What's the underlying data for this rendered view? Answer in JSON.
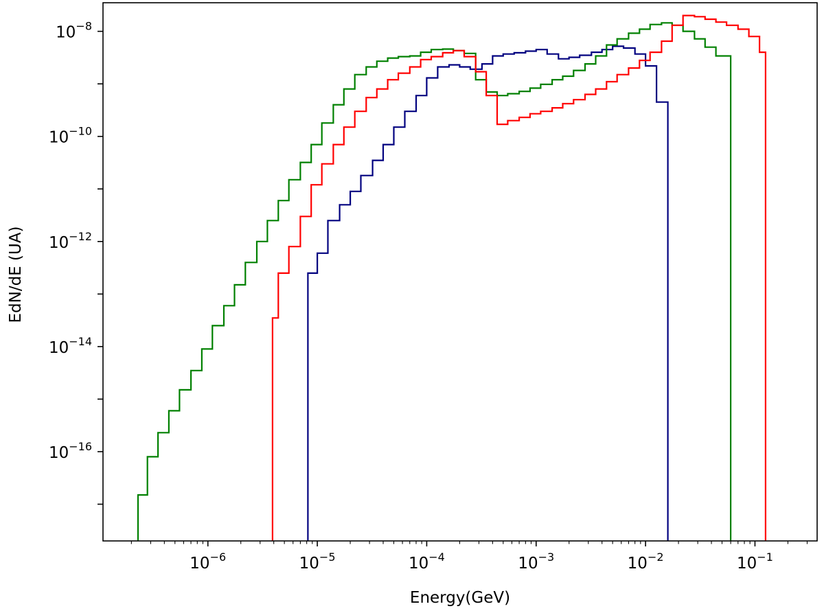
{
  "chart_data": {
    "type": "line",
    "step": true,
    "xlabel": "Energy(GeV)",
    "ylabel": "EdN/dE (UA)",
    "xscale": "log",
    "yscale": "log",
    "xlim": [
      1.1e-07,
      0.37
    ],
    "ylim": [
      2e-18,
      3.5e-08
    ],
    "grid": false,
    "legend": "none",
    "x_ticks": [
      {
        "exp": "−6",
        "value": 1e-06
      },
      {
        "exp": "−5",
        "value": 1e-05
      },
      {
        "exp": "−4",
        "value": 0.0001
      },
      {
        "exp": "−3",
        "value": 0.001
      },
      {
        "exp": "−2",
        "value": 0.01
      },
      {
        "exp": "−1",
        "value": 0.1
      }
    ],
    "y_ticks": [
      {
        "exp": "−8",
        "value": 1e-08
      },
      {
        "exp": "−10",
        "value": 1e-10
      },
      {
        "exp": "−12",
        "value": 1e-12
      },
      {
        "exp": "−14",
        "value": 1e-14
      },
      {
        "exp": "−16",
        "value": 1e-16
      }
    ],
    "series": [
      {
        "color": "#00007f",
        "x": [
          8.2e-06,
          1e-05,
          1.25e-05,
          1.6e-05,
          2e-05,
          2.5e-05,
          3.2e-05,
          4e-05,
          5e-05,
          6.3e-05,
          8e-05,
          0.0001,
          0.000126,
          0.00016,
          0.0002,
          0.00025,
          0.00032,
          0.0004,
          0.0005,
          0.00063,
          0.0008,
          0.001,
          0.00126,
          0.0016,
          0.002,
          0.0025,
          0.0032,
          0.004,
          0.005,
          0.0063,
          0.008,
          0.01,
          0.0126,
          0.016
        ],
        "y": [
          2.5e-13,
          6e-13,
          2.5e-12,
          5e-12,
          9e-12,
          1.8e-11,
          3.5e-11,
          7e-11,
          1.5e-10,
          3e-10,
          6e-10,
          1.3e-09,
          2.1e-09,
          2.3e-09,
          2.1e-09,
          1.9e-09,
          2.4e-09,
          3.4e-09,
          3.7e-09,
          3.9e-09,
          4.2e-09,
          4.5e-09,
          3.7e-09,
          3e-09,
          3.2e-09,
          3.5e-09,
          4e-09,
          4.5e-09,
          5.2e-09,
          4.8e-09,
          3.7e-09,
          2.2e-09,
          4.5e-10,
          1e-18
        ]
      },
      {
        "color": "#008000",
        "x": [
          2.3e-07,
          2.8e-07,
          3.5e-07,
          4.4e-07,
          5.5e-07,
          7e-07,
          8.8e-07,
          1.1e-06,
          1.4e-06,
          1.75e-06,
          2.2e-06,
          2.8e-06,
          3.5e-06,
          4.4e-06,
          5.5e-06,
          7e-06,
          8.8e-06,
          1.1e-05,
          1.4e-05,
          1.75e-05,
          2.2e-05,
          2.8e-05,
          3.5e-05,
          4.4e-05,
          5.5e-05,
          7e-05,
          8.8e-05,
          0.00011,
          0.00014,
          0.000175,
          0.00022,
          0.00028,
          0.00035,
          0.00044,
          0.00055,
          0.0007,
          0.00088,
          0.0011,
          0.0014,
          0.00175,
          0.0022,
          0.0028,
          0.0035,
          0.0044,
          0.0055,
          0.007,
          0.0088,
          0.011,
          0.014,
          0.0175,
          0.022,
          0.028,
          0.035,
          0.044,
          0.06
        ],
        "y": [
          1.5e-17,
          8e-17,
          2.3e-16,
          6e-16,
          1.5e-15,
          3.5e-15,
          9e-15,
          2.5e-14,
          6e-14,
          1.5e-13,
          4e-13,
          1e-12,
          2.5e-12,
          6e-12,
          1.5e-11,
          3.2e-11,
          7e-11,
          1.8e-10,
          4e-10,
          8e-10,
          1.5e-09,
          2.1e-09,
          2.7e-09,
          3.1e-09,
          3.3e-09,
          3.4e-09,
          4e-09,
          4.5e-09,
          4.6e-09,
          4.3e-09,
          3.8e-09,
          1.2e-09,
          7e-10,
          6e-10,
          6.5e-10,
          7.2e-10,
          8.3e-10,
          9.8e-10,
          1.2e-09,
          1.4e-09,
          1.8e-09,
          2.4e-09,
          3.4e-09,
          5.5e-09,
          7.2e-09,
          9.2e-09,
          1.1e-08,
          1.35e-08,
          1.45e-08,
          1.3e-08,
          1e-08,
          7.2e-09,
          5e-09,
          3.4e-09,
          1e-18
        ]
      },
      {
        "color": "#ff0000",
        "x": [
          3.9e-06,
          4.4e-06,
          5.5e-06,
          7e-06,
          8.8e-06,
          1.1e-05,
          1.4e-05,
          1.75e-05,
          2.2e-05,
          2.8e-05,
          3.5e-05,
          4.4e-05,
          5.5e-05,
          7e-05,
          8.8e-05,
          0.00011,
          0.00014,
          0.000175,
          0.00022,
          0.00028,
          0.00035,
          0.00044,
          0.00055,
          0.0007,
          0.00088,
          0.0011,
          0.0014,
          0.00175,
          0.0022,
          0.0028,
          0.0035,
          0.0044,
          0.0055,
          0.007,
          0.0088,
          0.011,
          0.014,
          0.0175,
          0.022,
          0.028,
          0.035,
          0.044,
          0.055,
          0.07,
          0.088,
          0.11,
          0.125
        ],
        "y": [
          3.5e-14,
          2.5e-13,
          8e-13,
          3e-12,
          1.2e-11,
          3e-11,
          7e-11,
          1.5e-10,
          3e-10,
          5.5e-10,
          8e-10,
          1.2e-09,
          1.6e-09,
          2.1e-09,
          2.9e-09,
          3.3e-09,
          3.9e-09,
          4.3e-09,
          3.3e-09,
          1.7e-09,
          6e-10,
          1.7e-10,
          2e-10,
          2.3e-10,
          2.7e-10,
          3e-10,
          3.5e-10,
          4.2e-10,
          5e-10,
          6.3e-10,
          8e-10,
          1.1e-09,
          1.5e-09,
          2e-09,
          2.8e-09,
          4e-09,
          6.5e-09,
          1.3e-08,
          2e-08,
          1.9e-08,
          1.7e-08,
          1.5e-08,
          1.3e-08,
          1.1e-08,
          8e-09,
          4e-09,
          1e-18
        ]
      }
    ]
  }
}
